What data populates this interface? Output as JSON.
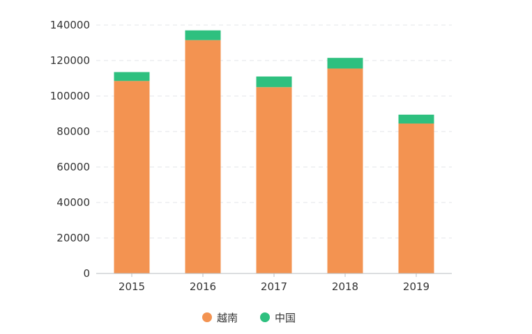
{
  "chart_data": {
    "type": "bar",
    "stacked": true,
    "title": "",
    "xlabel": "",
    "ylabel": "",
    "categories": [
      "2015",
      "2016",
      "2017",
      "2018",
      "2019"
    ],
    "series": [
      {
        "name": "越南",
        "color": "#f39351",
        "values": [
          108500,
          131500,
          105000,
          115500,
          84500
        ]
      },
      {
        "name": "中国",
        "color": "#2ec07f",
        "values": [
          5000,
          5500,
          6000,
          6000,
          5000
        ]
      }
    ],
    "ylim": [
      0,
      140000
    ],
    "yticks": [
      0,
      20000,
      40000,
      60000,
      80000,
      100000,
      120000,
      140000
    ],
    "grid": true,
    "legend_position": "bottom-center"
  }
}
